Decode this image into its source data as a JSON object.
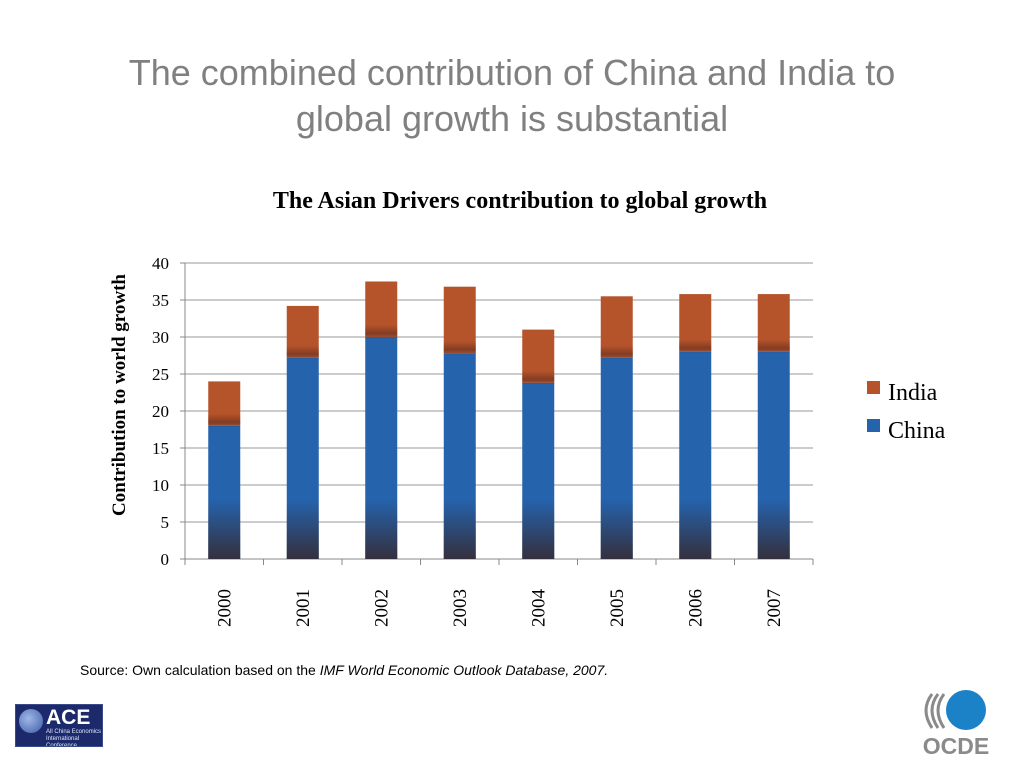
{
  "slide": {
    "title_line1": "The combined contribution of China and India to",
    "title_line2": "global growth is substantial"
  },
  "chart_data": {
    "type": "bar",
    "stacked": true,
    "title": "The Asian Drivers contribution to global growth",
    "xlabel": "",
    "ylabel": "Contribution to world growth",
    "ylim": [
      0,
      40
    ],
    "yticks": [
      0,
      5,
      10,
      15,
      20,
      25,
      30,
      35,
      40
    ],
    "grid": true,
    "legend_position": "right",
    "categories": [
      "2000",
      "2001",
      "2002",
      "2003",
      "2004",
      "2005",
      "2006",
      "2007"
    ],
    "series": [
      {
        "name": "China",
        "color": "#2563ad",
        "values": [
          18,
          27.2,
          30,
          27.8,
          23.8,
          27.2,
          28,
          28
        ]
      },
      {
        "name": "India",
        "color": "#b5532a",
        "values": [
          6,
          7,
          7.5,
          9,
          7.2,
          8.3,
          7.8,
          7.8
        ]
      }
    ]
  },
  "source": {
    "prefix": "Source: Own calculation based on the ",
    "italic": "IMF World Economic Outlook Database, 2007."
  },
  "logos": {
    "ace_word": "ACE",
    "ace_sub1": "All China Economics",
    "ace_sub2": "International Conference",
    "oecd_text": "OCDE"
  }
}
